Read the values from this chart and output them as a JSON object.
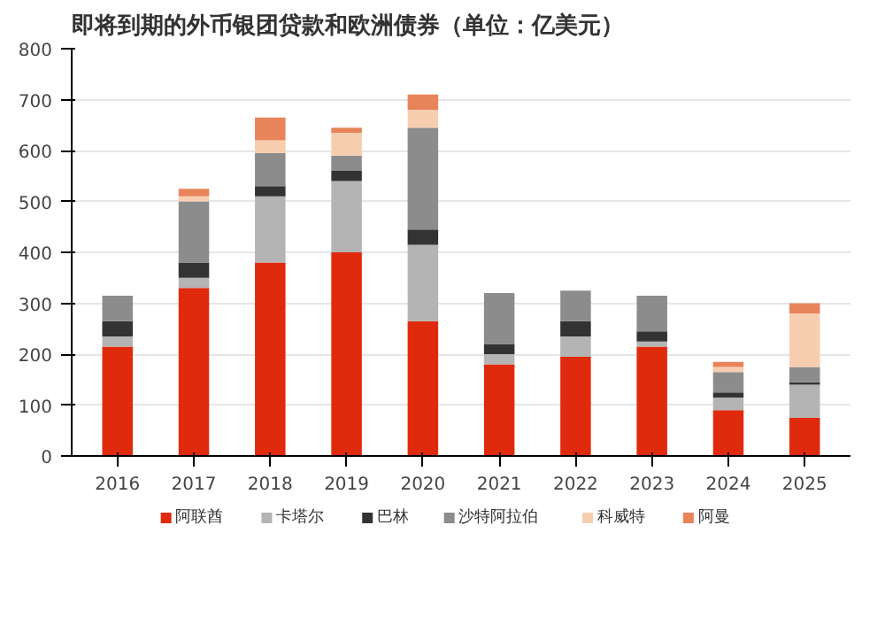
{
  "chart_data": {
    "type": "bar",
    "title": "即将到期的外币银团贷款和欧洲债券（单位：亿美元）",
    "categories": [
      "2016",
      "2017",
      "2018",
      "2019",
      "2020",
      "2021",
      "2022",
      "2023",
      "2024",
      "2025"
    ],
    "stacked": true,
    "ylim": [
      0,
      800
    ],
    "yticks": [
      0,
      100,
      200,
      300,
      400,
      500,
      600,
      700,
      800
    ],
    "grid": "y",
    "legend": "bottom",
    "series": [
      {
        "name": "阿联酋",
        "color": "#e02a0e",
        "values": [
          215,
          330,
          380,
          400,
          265,
          180,
          195,
          215,
          90,
          75
        ]
      },
      {
        "name": "卡塔尔",
        "color": "#b4b4b4",
        "values": [
          20,
          20,
          130,
          140,
          150,
          20,
          40,
          10,
          25,
          65
        ]
      },
      {
        "name": "巴林",
        "color": "#333333",
        "values": [
          30,
          30,
          20,
          20,
          30,
          20,
          30,
          20,
          10,
          5
        ]
      },
      {
        "name": "沙特阿拉伯",
        "color": "#8c8c8c",
        "values": [
          50,
          120,
          65,
          30,
          200,
          100,
          60,
          70,
          40,
          30
        ]
      },
      {
        "name": "科威特",
        "color": "#f7cdb0",
        "values": [
          0,
          10,
          25,
          45,
          35,
          0,
          0,
          0,
          10,
          105
        ]
      },
      {
        "name": "阿曼",
        "color": "#e8845a",
        "values": [
          0,
          15,
          45,
          10,
          30,
          0,
          0,
          0,
          10,
          20
        ]
      }
    ]
  }
}
